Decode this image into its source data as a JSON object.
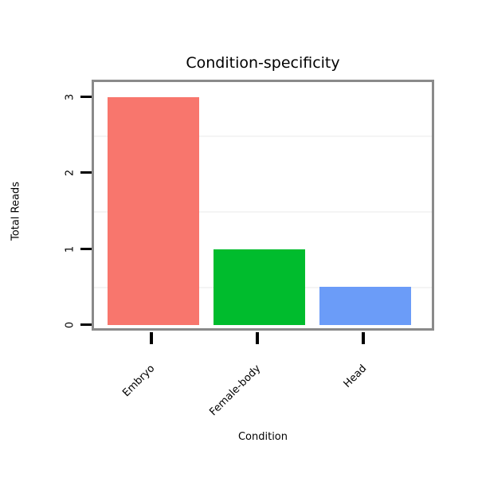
{
  "chart_data": {
    "type": "bar",
    "title": "Condition-specificity",
    "xlabel": "Condition",
    "ylabel": "Total Reads",
    "categories": [
      "Embryo",
      "Female-body",
      "Head"
    ],
    "values": [
      3,
      1,
      0.5
    ],
    "bar_colors": [
      "#F8766D",
      "#00BC2D",
      "#6B9CF8"
    ],
    "ylim": [
      0,
      3
    ],
    "yticks": [
      0,
      1,
      2,
      3
    ],
    "gridlines": [
      0.5,
      1.5,
      2.5
    ],
    "legend": "none",
    "grid": "faint horizontal lines at half-unit intervals",
    "plot_border_color": "#8A8A8A",
    "tick_color": "#000000",
    "background": "#FFFFFF"
  }
}
